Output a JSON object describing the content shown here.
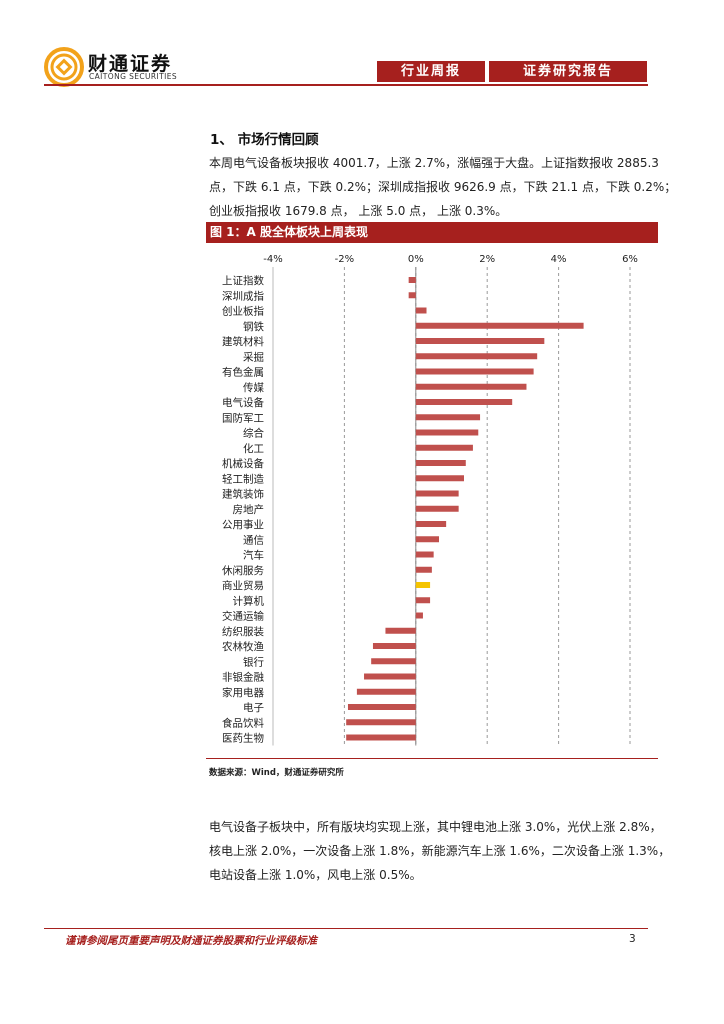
{
  "header": {
    "brand_cn": "财通证券",
    "brand_en": "CAITONG SECURITIES",
    "tab_weekly": "行业周报",
    "tab_report": "证券研究报告",
    "accent_color": "#a6201e"
  },
  "section": {
    "title": "1、 市场行情回顾"
  },
  "intro_lines": [
    "本周电气设备板块报收 4001.7，上涨 2.7%，涨幅强于大盘。上证指数报收 2885.3",
    "点，下跌 6.1 点，下跌 0.2%；深圳成指报收 9626.9 点，下跌 21.1 点，下跌 0.2%；",
    "创业板指报收 1679.8 点， 上涨 5.0 点， 上涨 0.3%。"
  ],
  "figure": {
    "caption": "图 1：A 股全体板块上周表现",
    "source": "数据来源：Wind，财通证券研究所"
  },
  "chart_data": {
    "type": "bar",
    "orientation": "horizontal",
    "title": "图 1：A 股全体板块上周表现",
    "xlim": [
      -4,
      6
    ],
    "xticks": [
      -4,
      -2,
      0,
      2,
      4,
      6
    ],
    "tick_suffix": "%",
    "grid": true,
    "bar_color": "#c0504d",
    "highlight_color": "#f5c400",
    "highlight_index": 20,
    "categories": [
      "上证指数",
      "深圳成指",
      "创业板指",
      "钢铁",
      "建筑材料",
      "采掘",
      "有色金属",
      "传媒",
      "电气设备",
      "国防军工",
      "综合",
      "化工",
      "机械设备",
      "轻工制造",
      "建筑装饰",
      "房地产",
      "公用事业",
      "通信",
      "汽车",
      "休闲服务",
      "商业贸易",
      "计算机",
      "交通运输",
      "纺织服装",
      "农林牧渔",
      "银行",
      "非银金融",
      "家用电器",
      "电子",
      "食品饮料",
      "医药生物"
    ],
    "values": [
      -0.2,
      -0.2,
      0.3,
      4.7,
      3.6,
      3.4,
      3.3,
      3.1,
      2.7,
      1.8,
      1.75,
      1.6,
      1.4,
      1.35,
      1.2,
      1.2,
      0.85,
      0.65,
      0.5,
      0.45,
      0.4,
      0.4,
      0.2,
      -0.85,
      -1.2,
      -1.25,
      -1.45,
      -1.65,
      -1.9,
      -1.95,
      -1.95
    ]
  },
  "conclusion_lines": [
    "电气设备子板块中，所有版块均实现上涨，其中锂电池上涨 3.0%，光伏上涨 2.8%，",
    "核电上涨 2.0%，一次设备上涨 1.8%，新能源汽车上涨 1.6%，二次设备上涨 1.3%，",
    "电站设备上涨 1.0%，风电上涨 0.5%。"
  ],
  "footer": {
    "disclaimer": "谨请参阅尾页重要声明及财通证券股票和行业评级标准",
    "page": "3"
  }
}
